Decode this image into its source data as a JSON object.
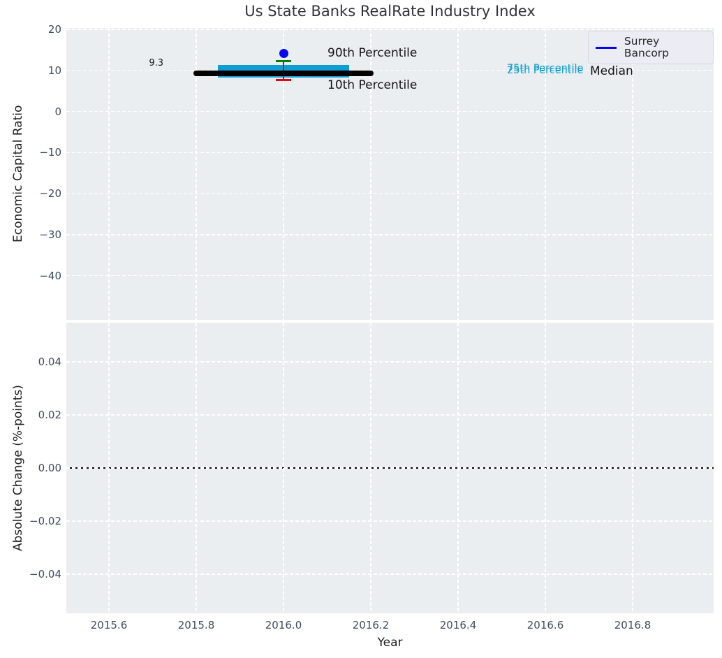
{
  "title": "Us State Banks RealRate Industry Index",
  "legend": {
    "label": "Surrey Bancorp"
  },
  "top_plot": {
    "ylabel": "Economic Capital Ratio",
    "yticks": [
      {
        "label": "20",
        "value": 20
      },
      {
        "label": "10",
        "value": 10
      },
      {
        "label": "0",
        "value": 0
      },
      {
        "label": "−10",
        "value": -10
      },
      {
        "label": "−20",
        "value": -20
      },
      {
        "label": "−30",
        "value": -30
      },
      {
        "label": "−40",
        "value": -40
      }
    ],
    "annotations": {
      "median_value": "9.3",
      "p90": "90th Percentile",
      "p10": "10th Percentile",
      "p75": "75th Percentile",
      "p25": "25th Percentile",
      "median": "Median"
    }
  },
  "bottom_plot": {
    "ylabel": "Absolute Change (%-points)",
    "xlabel": "Year",
    "yticks": [
      {
        "label": "0.04",
        "value": 0.04
      },
      {
        "label": "0.02",
        "value": 0.02
      },
      {
        "label": "0.00",
        "value": 0.0
      },
      {
        "label": "−0.02",
        "value": -0.02
      },
      {
        "label": "−0.04",
        "value": -0.04
      }
    ]
  },
  "xticks": [
    {
      "label": "2015.6",
      "value": 2015.6
    },
    {
      "label": "2015.8",
      "value": 2015.8
    },
    {
      "label": "2016.0",
      "value": 2016.0
    },
    {
      "label": "2016.2",
      "value": 2016.2
    },
    {
      "label": "2016.4",
      "value": 2016.4
    },
    {
      "label": "2016.6",
      "value": 2016.6
    },
    {
      "label": "2016.8",
      "value": 2016.8
    }
  ],
  "chart_data": {
    "type": "scatter",
    "title": "Us State Banks RealRate Industry Index",
    "xlabel": "Year",
    "xlim": [
      2015.5,
      2017.0
    ],
    "grid": true,
    "subplot_top": {
      "ylabel": "Economic Capital Ratio",
      "ylim": [
        -50.5,
        20.5
      ],
      "legend_position": "upper right",
      "industry_stats": {
        "year": 2016.0,
        "p90": 12.3,
        "p75": 11.3,
        "median": 9.3,
        "p25": 8.3,
        "p10": 7.6,
        "box_x_range": [
          2015.85,
          2016.15
        ],
        "median_x_range": [
          2015.8,
          2016.2
        ]
      },
      "company_series": {
        "name": "Surrey Bancorp",
        "x": [
          2016.0
        ],
        "y": [
          14.2
        ]
      }
    },
    "subplot_bottom": {
      "ylabel": "Absolute Change (%-points)",
      "ylim": [
        -0.055,
        0.055
      ],
      "zero_line_y": 0.0,
      "series": []
    }
  },
  "colors": {
    "plot_bg": "#eaeef0",
    "grid": "#ffffff",
    "tick_label": "#3d4c63",
    "box_fill": "#0f9dd4",
    "p90_tick": "#008000",
    "p10_tick": "#ea0606",
    "median_line": "#000000",
    "whisker": "#3a3a3a",
    "company_dot": "#0808f0",
    "legend_line": "#0808f0",
    "zero_line": "#000000"
  }
}
